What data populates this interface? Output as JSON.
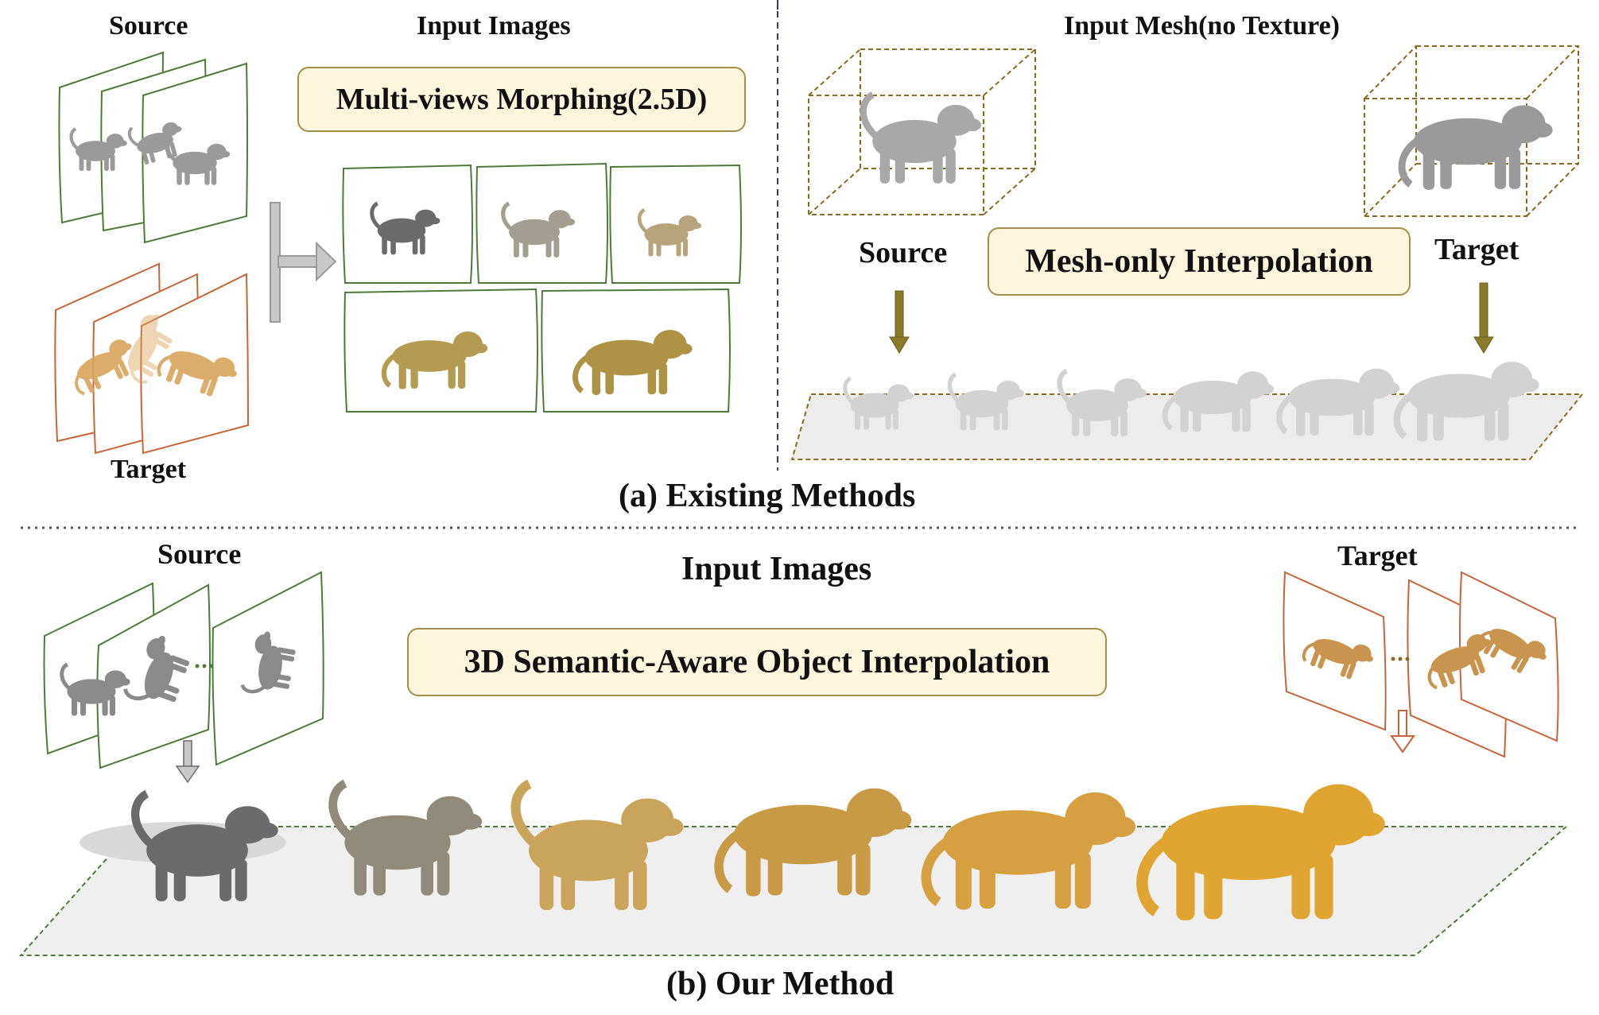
{
  "top": {
    "left": {
      "source_label": "Source",
      "input_images_label": "Input Images",
      "method_box": "Multi-views Morphing(2.5D)",
      "target_label": "Target"
    },
    "right": {
      "input_mesh_label": "Input Mesh(no Texture)",
      "source_label": "Source",
      "method_box": "Mesh-only Interpolation",
      "target_label": "Target"
    },
    "caption": "(a) Existing Methods"
  },
  "bottom": {
    "source_label": "Source",
    "input_images_label": "Input Images",
    "target_label": "Target",
    "method_box": "3D Semantic-Aware Object Interpolation",
    "ellipsis": "...",
    "caption": "(b) Our Method"
  },
  "colors": {
    "source_frame": "#4f7a3a",
    "target_frame": "#c8643a",
    "box_fill": "#fdf6dc",
    "box_border": "#a38e4c",
    "arrow_olive": "#8a7a2a",
    "morph_colors": [
      "#6b6b6b",
      "#8f8a7a",
      "#b89a55",
      "#c99a45",
      "#d6a040",
      "#e0a530"
    ]
  }
}
